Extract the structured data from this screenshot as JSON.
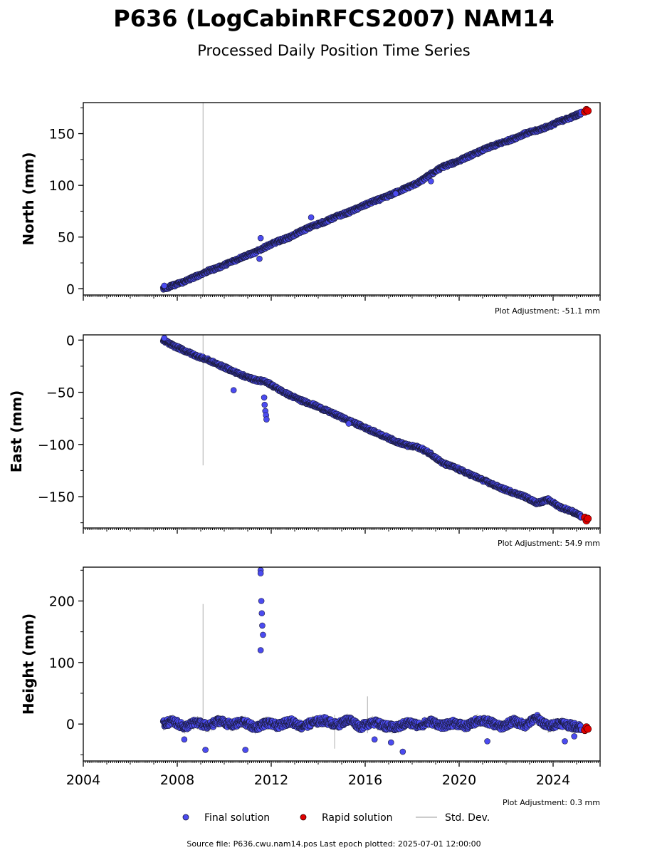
{
  "figure": {
    "title": "P636 (LogCabinRFCS2007) NAM14",
    "subtitle": "Processed Daily Position Time Series",
    "source_text": "Source file: P636.cwu.nam14.pos  Last epoch plotted: 2025-07-01 12:00:00"
  },
  "legend": {
    "final_label": "Final solution",
    "rapid_label": "Rapid solution",
    "std_label": "Std. Dev."
  },
  "colors": {
    "final": "#4b4bf0",
    "final_edge": "#1a1a3a",
    "rapid": "#e00000",
    "std": "#bbbbbb"
  },
  "chart_data": [
    {
      "type": "scatter",
      "name": "north",
      "ylabel": "North (mm)",
      "adjustment_text": "Plot Adjustment: -51.1 mm",
      "xlim": [
        2004.0,
        2026.0
      ],
      "ylim": [
        -6,
        180
      ],
      "yticks": [
        0,
        50,
        100,
        150
      ],
      "ytick_labels": [
        "0",
        "50",
        "100",
        "150"
      ],
      "xticks": [
        2004,
        2008,
        2012,
        2016,
        2020,
        2024
      ],
      "xtick_labels": [
        "",
        "",
        "",
        "",
        "",
        ""
      ],
      "series": [
        {
          "name": "Final solution",
          "x": [
            2007.4,
            2007.8,
            2008.3,
            2008.8,
            2009.3,
            2009.8,
            2010.3,
            2010.8,
            2011.3,
            2011.8,
            2012.3,
            2012.8,
            2013.3,
            2013.8,
            2014.3,
            2014.8,
            2015.3,
            2015.8,
            2016.3,
            2016.8,
            2017.3,
            2017.8,
            2018.3,
            2018.8,
            2019.3,
            2019.8,
            2020.3,
            2020.8,
            2021.3,
            2021.8,
            2022.3,
            2022.8,
            2023.3,
            2023.8,
            2024.3,
            2024.8,
            2025.2
          ],
          "y": [
            0,
            3,
            7,
            12,
            17,
            21,
            26,
            31,
            35,
            41,
            46,
            50,
            56,
            61,
            65,
            70,
            74,
            79,
            84,
            88,
            93,
            98,
            103,
            111,
            118,
            122,
            127,
            132,
            137,
            141,
            145,
            150,
            153,
            157,
            162,
            166,
            170
          ]
        },
        {
          "name": "Rapid solution",
          "x": [
            2025.35,
            2025.42,
            2025.48
          ],
          "y": [
            171,
            173,
            172
          ]
        }
      ],
      "outliers": {
        "x": [
          2007.45,
          2011.5,
          2011.55,
          2013.7,
          2017.3,
          2018.8
        ],
        "y": [
          3,
          29,
          49,
          69,
          92,
          104
        ]
      },
      "std_spikes": [
        {
          "x": 2009.1,
          "y0": -6,
          "y1": 180
        }
      ]
    },
    {
      "type": "scatter",
      "name": "east",
      "ylabel": "East (mm)",
      "adjustment_text": "Plot Adjustment: 54.9 mm",
      "xlim": [
        2004.0,
        2026.0
      ],
      "ylim": [
        -180,
        5
      ],
      "yticks": [
        0,
        -50,
        -100,
        -150
      ],
      "ytick_labels": [
        "0",
        "−50",
        "−100",
        "−150"
      ],
      "xticks": [
        2004,
        2008,
        2012,
        2016,
        2020,
        2024
      ],
      "xtick_labels": [
        "",
        "",
        "",
        "",
        "",
        ""
      ],
      "series": [
        {
          "name": "Final solution",
          "x": [
            2007.4,
            2007.8,
            2008.3,
            2008.8,
            2009.3,
            2009.8,
            2010.3,
            2010.8,
            2011.3,
            2011.8,
            2012.3,
            2012.8,
            2013.3,
            2013.8,
            2014.3,
            2014.8,
            2015.3,
            2015.8,
            2016.3,
            2016.8,
            2017.3,
            2017.8,
            2018.3,
            2018.8,
            2019.3,
            2019.8,
            2020.3,
            2020.8,
            2021.3,
            2021.8,
            2022.3,
            2022.8,
            2023.3,
            2023.8,
            2024.3,
            2024.8,
            2025.2
          ],
          "y": [
            0,
            -5,
            -10,
            -15,
            -19,
            -24,
            -29,
            -34,
            -38,
            -40,
            -47,
            -53,
            -58,
            -62,
            -67,
            -72,
            -77,
            -82,
            -87,
            -92,
            -97,
            -101,
            -103,
            -109,
            -118,
            -122,
            -127,
            -132,
            -137,
            -142,
            -146,
            -150,
            -156,
            -153,
            -160,
            -164,
            -169
          ]
        },
        {
          "name": "Rapid solution",
          "x": [
            2025.35,
            2025.42,
            2025.48
          ],
          "y": [
            -170,
            -173,
            -171
          ]
        }
      ],
      "outliers": {
        "x": [
          2007.45,
          2010.4,
          2011.7,
          2011.72,
          2011.75,
          2011.78,
          2011.8,
          2015.3
        ],
        "y": [
          2,
          -48,
          -55,
          -62,
          -68,
          -72,
          -76,
          -80
        ]
      },
      "std_spikes": [
        {
          "x": 2009.1,
          "y0": -120,
          "y1": 5
        }
      ]
    },
    {
      "type": "scatter",
      "name": "height",
      "ylabel": "Height (mm)",
      "adjustment_text": "Plot Adjustment: 0.3 mm",
      "xlim": [
        2004.0,
        2026.0
      ],
      "ylim": [
        -60,
        255
      ],
      "yticks": [
        0,
        100,
        200
      ],
      "ytick_labels": [
        "0",
        "100",
        "200"
      ],
      "xticks": [
        2004,
        2008,
        2012,
        2016,
        2020,
        2024
      ],
      "xtick_labels": [
        "2004",
        "2008",
        "2012",
        "2016",
        "2020",
        "2024"
      ],
      "series": [
        {
          "name": "Final solution",
          "x": [
            2007.4,
            2007.8,
            2008.3,
            2008.8,
            2009.3,
            2009.8,
            2010.3,
            2010.8,
            2011.3,
            2011.8,
            2012.3,
            2012.8,
            2013.3,
            2013.8,
            2014.3,
            2014.8,
            2015.3,
            2015.8,
            2016.3,
            2016.8,
            2017.3,
            2017.8,
            2018.3,
            2018.8,
            2019.3,
            2019.8,
            2020.3,
            2020.8,
            2021.3,
            2021.8,
            2022.3,
            2022.8,
            2023.3,
            2023.8,
            2024.3,
            2024.8,
            2025.2
          ],
          "y": [
            0,
            5,
            -5,
            3,
            -4,
            6,
            -2,
            4,
            -6,
            2,
            -3,
            5,
            -4,
            3,
            6,
            -2,
            8,
            -5,
            4,
            -3,
            -6,
            2,
            -2,
            4,
            -3,
            2,
            -4,
            6,
            3,
            -5,
            5,
            -2,
            10,
            -4,
            2,
            -3,
            -5
          ]
        },
        {
          "name": "Rapid solution",
          "x": [
            2025.35,
            2025.42,
            2025.48
          ],
          "y": [
            -10,
            -5,
            -8
          ]
        }
      ],
      "outliers": {
        "x": [
          2008.3,
          2009.2,
          2010.9,
          2011.55,
          2011.55,
          2011.58,
          2011.6,
          2011.62,
          2011.65,
          2011.55,
          2016.4,
          2017.1,
          2017.6,
          2021.2,
          2024.5,
          2024.9
        ],
        "y": [
          -25,
          -42,
          -42,
          250,
          245,
          200,
          180,
          160,
          145,
          120,
          -25,
          -30,
          -45,
          -28,
          -28,
          -20
        ]
      },
      "std_spikes": [
        {
          "x": 2009.1,
          "y0": -5,
          "y1": 195
        },
        {
          "x": 2014.7,
          "y0": -40,
          "y1": 15
        },
        {
          "x": 2016.1,
          "y0": -15,
          "y1": 45
        }
      ]
    }
  ]
}
